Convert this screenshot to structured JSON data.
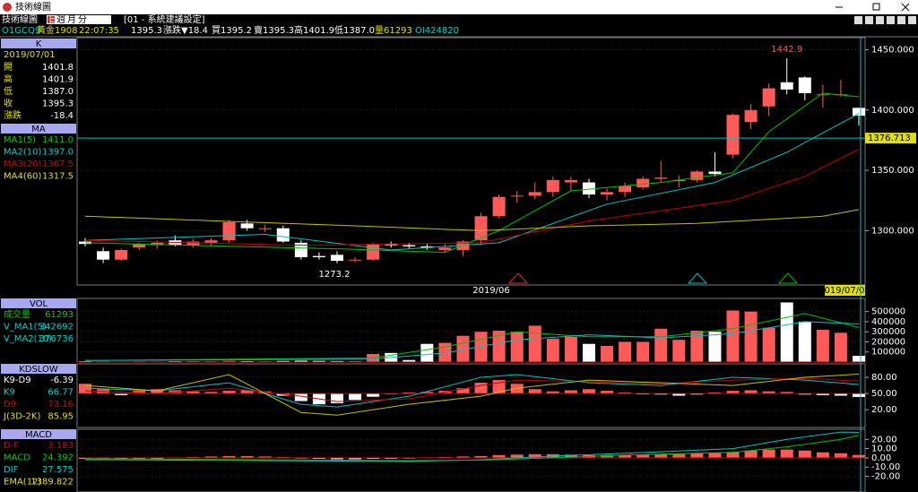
{
  "window": {
    "title": "技術線圖"
  },
  "toolbar": {
    "label": "技術線圖",
    "periods": [
      "日",
      "週",
      "月",
      "分"
    ],
    "setting": "[01 - 系統建議設定]"
  },
  "quote": {
    "symbol": "O1GCQ9",
    "name": "黃金1908",
    "time": "22:07:35",
    "price": "1395.3",
    "change": "漲跌▼18.4",
    "bid": "買1395.2",
    "ask": "賣1395.3",
    "high": "高1401.9",
    "low": "低1387.0",
    "volume": "量61293",
    "oi": "OI424820"
  },
  "info": [
    {
      "header": "K",
      "date": "2019/07/01",
      "rows": [
        [
          "開",
          "1401.8"
        ],
        [
          "高",
          "1401.9"
        ],
        [
          "低",
          "1387.0"
        ],
        [
          "收",
          "1395.3"
        ],
        [
          "漲跌",
          "-18.4"
        ]
      ],
      "colors": [
        "#e0e000",
        "#e0e000",
        "#e0e000",
        "#e0e000",
        "#e0e000"
      ]
    },
    {
      "header": "MA",
      "rows": [
        [
          "MA1(5)",
          "1411.0"
        ],
        [
          "MA2(10)",
          "1397.0"
        ],
        [
          "MA3(20)",
          "1367.5"
        ],
        [
          "MA4(60)",
          "1317.5"
        ]
      ],
      "colors": [
        "#00d000",
        "#00d0d0",
        "#e00000",
        "#e0e000"
      ]
    },
    {
      "header": "VOL",
      "rows": [
        [
          "成交量",
          "61293"
        ],
        [
          "V_MA1(5)",
          "342692"
        ],
        [
          "V_MA2(10)",
          "376736"
        ]
      ],
      "colors": [
        "#00d000",
        "#00d0d0",
        "#00d0d0"
      ]
    },
    {
      "header": "KDSLOW",
      "rows": [
        [
          "K9-D9",
          "-6.39"
        ],
        [
          "K9",
          "66.77"
        ],
        [
          "D9",
          "73.16"
        ],
        [
          "J(3D-2K)",
          "85.95"
        ]
      ],
      "colors": [
        "#ffffff",
        "#00d0d0",
        "#e00000",
        "#e0e000"
      ]
    },
    {
      "header": "MACD",
      "rows": [
        [
          "D-F",
          "3.183"
        ],
        [
          "MACD",
          "24.392"
        ],
        [
          "DIF",
          "27.575"
        ],
        [
          "EMA(12)",
          "1389.822"
        ]
      ],
      "colors": [
        "#e00000",
        "#00d000",
        "#00d0d0",
        "#e0e000"
      ]
    }
  ],
  "charts": [
    {
      "type": "candlestick",
      "ylim": [
        1255,
        1460
      ],
      "yticks": [
        {
          "value": 1450,
          "label": "1450.000"
        },
        {
          "value": 1400,
          "label": "1400.000"
        },
        {
          "value": 1350,
          "label": "1350.000"
        },
        {
          "value": 1300,
          "label": "1300.000"
        }
      ],
      "open": [
        1291,
        1283,
        1276,
        1286,
        1288,
        1292,
        1288,
        1290,
        1292,
        1306,
        1302,
        1302,
        1290,
        1279,
        1280,
        1276,
        1276,
        1289,
        1288,
        1287,
        1284,
        1284,
        1292,
        1312,
        1329,
        1329,
        1332,
        1340,
        1340,
        1330,
        1332,
        1336,
        1343,
        1341,
        1342,
        1349,
        1363,
        1390,
        1403,
        1423,
        1427,
        1413,
        1413,
        1401.8
      ],
      "high": [
        1294,
        1286,
        1285,
        1290,
        1292,
        1296,
        1293,
        1294,
        1309,
        1309,
        1305,
        1304,
        1292,
        1282,
        1283,
        1278,
        1290,
        1291,
        1290,
        1289,
        1289,
        1292,
        1315,
        1330,
        1333,
        1340,
        1345,
        1345,
        1343,
        1335,
        1340,
        1345,
        1358,
        1346,
        1350,
        1365,
        1397,
        1405,
        1422,
        1442.9,
        1428,
        1421,
        1425,
        1401.9
      ],
      "low": [
        1287,
        1273.2,
        1275,
        1284,
        1285,
        1287,
        1286,
        1287,
        1290,
        1300,
        1299,
        1290,
        1276,
        1276,
        1273,
        1274,
        1275,
        1286,
        1285,
        1284,
        1282,
        1279,
        1288,
        1310,
        1323,
        1326,
        1328,
        1333,
        1327,
        1325,
        1328,
        1334,
        1340,
        1336,
        1340,
        1345,
        1360,
        1384,
        1395,
        1413,
        1408,
        1402,
        1411,
        1387
      ],
      "close": [
        1289,
        1276,
        1284,
        1289,
        1290,
        1288,
        1291,
        1292,
        1307,
        1302,
        1302,
        1291,
        1278,
        1278,
        1275,
        1276,
        1289,
        1288,
        1287,
        1286,
        1286,
        1291,
        1312,
        1328,
        1329,
        1332,
        1342,
        1342,
        1330,
        1332,
        1337,
        1343,
        1344,
        1342,
        1349,
        1347,
        1396,
        1400,
        1418,
        1417,
        1414,
        1413,
        1413,
        1395.3
      ],
      "lines": [
        {
          "color": "#00c000",
          "x": [
            0,
            14,
            20,
            23,
            27,
            32,
            36,
            38,
            41,
            43
          ],
          "values": [
            1290,
            1285,
            1282,
            1300,
            1333,
            1340,
            1348,
            1382,
            1414,
            1411
          ]
        },
        {
          "color": "#00c0c0",
          "x": [
            0,
            10,
            17,
            23,
            29,
            35,
            39,
            43
          ],
          "values": [
            1292,
            1297,
            1284,
            1290,
            1322,
            1340,
            1365,
            1397
          ]
        },
        {
          "color": "#c00000",
          "x": [
            0,
            12,
            22,
            28,
            36,
            40,
            43
          ],
          "values": [
            1292,
            1288,
            1290,
            1308,
            1325,
            1345,
            1367.5
          ]
        },
        {
          "color": "#c0c000",
          "x": [
            0,
            15,
            22,
            28,
            34,
            41,
            43
          ],
          "values": [
            1312,
            1304,
            1300,
            1304,
            1306,
            1312,
            1317.5
          ]
        }
      ],
      "high_label": "1442.9",
      "low_label": "1273.2",
      "date_labels": [
        "2019/06",
        "2019/07/01"
      ],
      "crosshair": {
        "value": 1376.713,
        "label": "1376.713"
      }
    },
    {
      "type": "bar",
      "ylim": [
        0,
        630000
      ],
      "yticks": [
        500000,
        400000,
        300000,
        200000,
        100000
      ],
      "bar_base": 0,
      "values": [
        8000,
        6000,
        5000,
        7000,
        6000,
        8000,
        9000,
        8000,
        12000,
        9000,
        8000,
        11000,
        14000,
        12000,
        10000,
        9000,
        80000,
        90000,
        20000,
        180000,
        190000,
        260000,
        300000,
        310000,
        300000,
        360000,
        230000,
        250000,
        180000,
        160000,
        200000,
        200000,
        330000,
        220000,
        310000,
        300000,
        510000,
        500000,
        340000,
        590000,
        400000,
        320000,
        290000,
        61293
      ],
      "lines": [
        {
          "color": "#00c000",
          "x": [
            0,
            16,
            20,
            24,
            28,
            32,
            36,
            40,
            43
          ],
          "values": [
            15000,
            40000,
            150000,
            300000,
            250000,
            250000,
            330000,
            480000,
            342692
          ]
        },
        {
          "color": "#00c0c0",
          "x": [
            0,
            16,
            20,
            24,
            28,
            32,
            36,
            40,
            43
          ],
          "values": [
            15000,
            30000,
            90000,
            220000,
            270000,
            240000,
            280000,
            400000,
            376736
          ]
        }
      ]
    },
    {
      "type": "bar",
      "ylim": [
        -13,
        105
      ],
      "yticks": [
        {
          "value": 80,
          "label": "80.00"
        },
        {
          "value": 50,
          "label": "50.00"
        },
        {
          "value": 20,
          "label": "20.00"
        }
      ],
      "bar_base": 50,
      "values": [
        18,
        8,
        -3,
        5,
        8,
        6,
        4,
        3,
        5,
        6,
        4,
        -4,
        -14,
        -20,
        -18,
        -12,
        -6,
        0,
        2,
        3,
        5,
        10,
        20,
        25,
        18,
        8,
        4,
        6,
        8,
        5,
        2,
        -1,
        -2,
        -4,
        -2,
        2,
        5,
        6,
        4,
        3,
        -2,
        -3,
        -4,
        -6.39
      ],
      "lines": [
        {
          "color": "#00c0c0",
          "x": [
            0,
            4,
            8,
            12,
            14,
            18,
            22,
            24,
            28,
            32,
            36,
            40,
            43
          ],
          "values": [
            60,
            55,
            70,
            30,
            25,
            45,
            80,
            85,
            70,
            65,
            80,
            75,
            66.77
          ]
        },
        {
          "color": "#c00000",
          "x": [
            0,
            4,
            8,
            12,
            14,
            18,
            22,
            24,
            28,
            32,
            36,
            40,
            43
          ],
          "values": [
            55,
            50,
            60,
            45,
            35,
            40,
            65,
            75,
            72,
            68,
            75,
            78,
            73.16
          ]
        },
        {
          "color": "#c0c000",
          "x": [
            0,
            4,
            8,
            12,
            14,
            18,
            22,
            24,
            28,
            32,
            36,
            40,
            43
          ],
          "values": [
            65,
            55,
            85,
            15,
            10,
            30,
            45,
            60,
            75,
            70,
            65,
            80,
            85.95
          ]
        }
      ]
    },
    {
      "type": "bar",
      "ylim": [
        -37,
        31
      ],
      "yticks": [
        {
          "value": 20,
          "label": "20.00"
        },
        {
          "value": 10,
          "label": "10.00"
        },
        {
          "value": 0,
          "label": "0.00"
        },
        {
          "value": -10,
          "label": "-10.00"
        },
        {
          "value": -20,
          "label": "-20.00"
        }
      ],
      "bar_base": 0,
      "values": [
        -1,
        -1,
        -1.5,
        -1,
        -0.5,
        0.5,
        1,
        1.5,
        2,
        2,
        1.5,
        1,
        0,
        -1,
        -1.5,
        -1.5,
        -1,
        -0.5,
        0,
        0.5,
        1,
        1.5,
        2,
        3,
        3.5,
        4,
        4,
        3.5,
        3,
        3,
        3,
        3.5,
        4,
        4.5,
        5,
        5.5,
        6.5,
        8,
        9,
        9,
        8,
        6,
        5,
        3.183
      ],
      "lines": [
        {
          "color": "#00c0c0",
          "x": [
            0,
            10,
            18,
            22,
            26,
            30,
            36,
            39,
            42,
            43
          ],
          "values": [
            -2,
            -3,
            -4,
            -2,
            2,
            5,
            10,
            20,
            28,
            27.575
          ]
        },
        {
          "color": "#00c000",
          "x": [
            0,
            10,
            18,
            22,
            26,
            30,
            36,
            39,
            42,
            43
          ],
          "values": [
            -1,
            -2,
            -3,
            -2.5,
            0,
            3,
            6,
            12,
            20,
            24.392
          ]
        }
      ]
    }
  ]
}
